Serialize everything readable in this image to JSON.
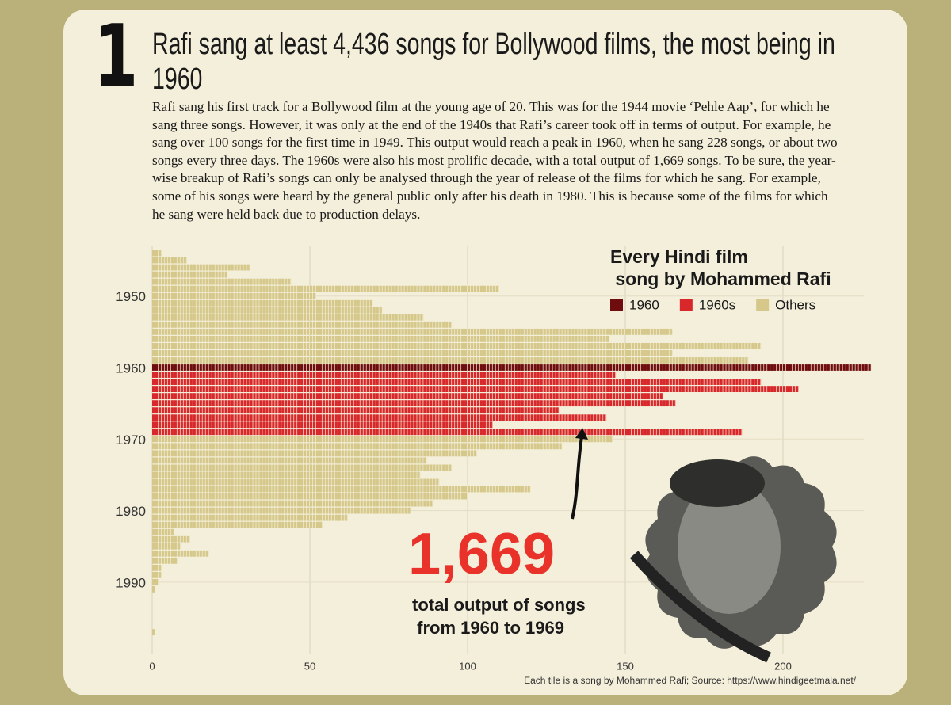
{
  "chart_data": {
    "type": "bar",
    "orientation": "horizontal",
    "number": "1",
    "title": "Rafi sang at least 4,436 songs for Bollywood films, the most being in 1960",
    "subtitle": "Rafi sang his first track for a Bollywood film at the young age of 20. This was for the 1944 movie ‘Pehle Aap’, for which he sang three songs. However, it was only at the end of the 1940s that Rafi’s career took off in terms of output. For example, he sang over 100 songs for the first time in 1949. This output would reach a peak in 1960, when he sang 228 songs, or about two songs every three days. The 1960s were also his most prolific decade, with a total output of 1,669 songs. To be sure, the year-wise breakup of Rafi’s songs can only be analysed through the year of release of the films for which he sang. For example, some of his songs were heard by the general public only after his death in 1980. This is because some of the films for which he sang were held back due to production delays.",
    "legend_title": "Every Hindi film song by Mohammed Rafi",
    "annotation_value": "1,669",
    "annotation_text": "total output of songs from 1960 to 1969",
    "source": "Each tile is a song by Mohammed Rafi; Source: https://www.hindigeetmala.net/",
    "series": [
      {
        "name": "1960",
        "color": "#6e0c0e",
        "x": [
          1960
        ],
        "values": [
          228
        ]
      },
      {
        "name": "1960s",
        "color": "#d8282b",
        "x": [
          1961,
          1962,
          1963,
          1964,
          1965,
          1966,
          1967,
          1968,
          1969
        ],
        "values": [
          147,
          193,
          205,
          162,
          166,
          129,
          144,
          108,
          187
        ]
      },
      {
        "name": "Others",
        "color": "#d5c88a",
        "x": [
          1944,
          1945,
          1946,
          1947,
          1948,
          1949,
          1950,
          1951,
          1952,
          1953,
          1954,
          1955,
          1956,
          1957,
          1958,
          1959,
          1970,
          1971,
          1972,
          1973,
          1974,
          1975,
          1976,
          1977,
          1978,
          1979,
          1980,
          1981,
          1982,
          1983,
          1984,
          1985,
          1986,
          1987,
          1988,
          1989,
          1990,
          1991,
          1997
        ],
        "values": [
          3,
          11,
          31,
          24,
          44,
          110,
          52,
          70,
          73,
          86,
          95,
          165,
          145,
          193,
          165,
          189,
          146,
          130,
          103,
          87,
          95,
          85,
          91,
          120,
          100,
          89,
          82,
          62,
          54,
          7,
          12,
          9,
          18,
          8,
          3,
          3,
          2,
          1,
          1
        ]
      }
    ],
    "xlim": [
      0,
      230
    ],
    "xticks": [
      0,
      50,
      100,
      150,
      200
    ],
    "ylim": [
      1943.5,
      1997.5
    ],
    "yticks": [
      1950,
      1960,
      1970,
      1980,
      1990
    ],
    "grid": true
  }
}
